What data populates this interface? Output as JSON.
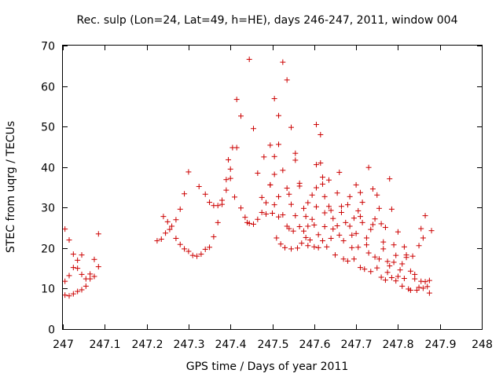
{
  "chart_data": {
    "type": "scatter",
    "title": "Rec. sulp (Lon=24, Lat=49, h=HE), days 246-247, 2011, window 004",
    "xlabel": "GPS time / Days of year 2011",
    "ylabel": "STEC from uqrg / TECUs",
    "xlim": [
      247,
      248
    ],
    "ylim": [
      0,
      70
    ],
    "xticks": [
      "247",
      "247.1",
      "247.2",
      "247.3",
      "247.4",
      "247.5",
      "247.6",
      "247.7",
      "247.8",
      "247.9",
      "248"
    ],
    "yticks": [
      "0",
      "10",
      "20",
      "30",
      "40",
      "50",
      "60",
      "70"
    ],
    "grid": false,
    "marker": "plus",
    "color": "#cc0000",
    "series": [
      {
        "points": [
          [
            247.005,
            24.7
          ],
          [
            247.005,
            11.8
          ],
          [
            247.005,
            8.4
          ],
          [
            247.015,
            22.0
          ],
          [
            247.015,
            13.2
          ],
          [
            247.015,
            8.2
          ],
          [
            247.025,
            18.5
          ],
          [
            247.025,
            15.2
          ],
          [
            247.025,
            8.7
          ],
          [
            247.035,
            17.0
          ],
          [
            247.035,
            15.0
          ],
          [
            247.035,
            9.3
          ],
          [
            247.045,
            18.3
          ],
          [
            247.045,
            13.5
          ],
          [
            247.045,
            9.7
          ],
          [
            247.055,
            12.4
          ],
          [
            247.055,
            10.6
          ],
          [
            247.065,
            13.6
          ],
          [
            247.065,
            12.4
          ],
          [
            247.075,
            17.2
          ],
          [
            247.075,
            13.0
          ],
          [
            247.085,
            23.5
          ],
          [
            247.085,
            15.4
          ],
          [
            247.225,
            21.8
          ],
          [
            247.235,
            22.2
          ],
          [
            247.24,
            27.8
          ],
          [
            247.245,
            23.7
          ],
          [
            247.25,
            26.5
          ],
          [
            247.255,
            24.6
          ],
          [
            247.26,
            25.4
          ],
          [
            247.27,
            22.4
          ],
          [
            247.27,
            27.0
          ],
          [
            247.28,
            20.9
          ],
          [
            247.28,
            29.6
          ],
          [
            247.29,
            19.8
          ],
          [
            247.29,
            33.4
          ],
          [
            247.3,
            19.2
          ],
          [
            247.3,
            38.8
          ],
          [
            247.31,
            18.2
          ],
          [
            247.32,
            18.0
          ],
          [
            247.325,
            35.2
          ],
          [
            247.33,
            18.5
          ],
          [
            247.34,
            19.7
          ],
          [
            247.34,
            33.3
          ],
          [
            247.35,
            20.2
          ],
          [
            247.35,
            31.3
          ],
          [
            247.36,
            22.8
          ],
          [
            247.36,
            30.5
          ],
          [
            247.37,
            26.3
          ],
          [
            247.37,
            30.5
          ],
          [
            247.38,
            30.8
          ],
          [
            247.38,
            31.8
          ],
          [
            247.39,
            34.3
          ],
          [
            247.39,
            36.9
          ],
          [
            247.395,
            41.8
          ],
          [
            247.4,
            37.2
          ],
          [
            247.4,
            39.5
          ],
          [
            247.405,
            44.8
          ],
          [
            247.41,
            32.6
          ],
          [
            247.415,
            44.8
          ],
          [
            247.415,
            56.7
          ],
          [
            247.425,
            52.6
          ],
          [
            247.425,
            29.9
          ],
          [
            247.435,
            27.6
          ],
          [
            247.44,
            26.3
          ],
          [
            247.445,
            66.6
          ],
          [
            247.445,
            26.1
          ],
          [
            247.455,
            49.5
          ],
          [
            247.455,
            25.9
          ],
          [
            247.465,
            38.5
          ],
          [
            247.465,
            27.1
          ],
          [
            247.475,
            32.5
          ],
          [
            247.475,
            28.8
          ],
          [
            247.48,
            42.5
          ],
          [
            247.485,
            31.2
          ],
          [
            247.485,
            28.4
          ],
          [
            247.495,
            45.4
          ],
          [
            247.495,
            35.6
          ],
          [
            247.495,
            35.6
          ],
          [
            247.5,
            28.6
          ],
          [
            247.505,
            56.9
          ],
          [
            247.505,
            42.6
          ],
          [
            247.505,
            38.2
          ],
          [
            247.505,
            30.7
          ],
          [
            247.51,
            22.5
          ],
          [
            247.515,
            45.6
          ],
          [
            247.515,
            52.7
          ],
          [
            247.515,
            32.7
          ],
          [
            247.515,
            27.7
          ],
          [
            247.52,
            21.0
          ],
          [
            247.525,
            65.9
          ],
          [
            247.525,
            39.2
          ],
          [
            247.525,
            28.2
          ],
          [
            247.53,
            20.1
          ],
          [
            247.535,
            61.5
          ],
          [
            247.535,
            34.8
          ],
          [
            247.535,
            25.4
          ],
          [
            247.54,
            33.3
          ],
          [
            247.54,
            24.8
          ],
          [
            247.545,
            49.8
          ],
          [
            247.545,
            30.8
          ],
          [
            247.545,
            19.8
          ],
          [
            247.55,
            24.2
          ],
          [
            247.555,
            43.4
          ],
          [
            247.555,
            41.7
          ],
          [
            247.555,
            28.0
          ],
          [
            247.56,
            20.0
          ],
          [
            247.565,
            36.0
          ],
          [
            247.565,
            35.3
          ],
          [
            247.565,
            25.3
          ],
          [
            247.57,
            21.2
          ],
          [
            247.575,
            29.8
          ],
          [
            247.575,
            24.2
          ],
          [
            247.58,
            27.8
          ],
          [
            247.58,
            22.6
          ],
          [
            247.585,
            31.2
          ],
          [
            247.585,
            25.4
          ],
          [
            247.585,
            20.6
          ],
          [
            247.59,
            22.0
          ],
          [
            247.595,
            33.1
          ],
          [
            247.595,
            27.1
          ],
          [
            247.6,
            20.3
          ],
          [
            247.6,
            25.7
          ],
          [
            247.605,
            50.5
          ],
          [
            247.605,
            40.6
          ],
          [
            247.605,
            34.9
          ],
          [
            247.605,
            30.2
          ],
          [
            247.61,
            23.3
          ],
          [
            247.61,
            20.1
          ],
          [
            247.615,
            48.0
          ],
          [
            247.615,
            41.0
          ],
          [
            247.62,
            37.5
          ],
          [
            247.62,
            35.8
          ],
          [
            247.62,
            21.8
          ],
          [
            247.625,
            32.7
          ],
          [
            247.625,
            28.7
          ],
          [
            247.625,
            25.3
          ],
          [
            247.63,
            20.3
          ],
          [
            247.635,
            36.8
          ],
          [
            247.635,
            30.3
          ],
          [
            247.64,
            29.3
          ],
          [
            247.64,
            22.4
          ],
          [
            247.645,
            27.3
          ],
          [
            247.645,
            24.7
          ],
          [
            247.65,
            18.3
          ],
          [
            247.655,
            33.6
          ],
          [
            247.655,
            25.5
          ],
          [
            247.66,
            38.7
          ],
          [
            247.66,
            23.2
          ],
          [
            247.665,
            30.3
          ],
          [
            247.665,
            28.8
          ],
          [
            247.67,
            21.8
          ],
          [
            247.67,
            17.3
          ],
          [
            247.675,
            26.3
          ],
          [
            247.68,
            30.7
          ],
          [
            247.68,
            16.8
          ],
          [
            247.685,
            32.7
          ],
          [
            247.685,
            25.4
          ],
          [
            247.69,
            23.2
          ],
          [
            247.69,
            20.1
          ],
          [
            247.695,
            27.4
          ],
          [
            247.695,
            17.3
          ],
          [
            247.7,
            35.6
          ],
          [
            247.7,
            23.6
          ],
          [
            247.705,
            29.2
          ],
          [
            247.705,
            20.2
          ],
          [
            247.71,
            33.7
          ],
          [
            247.71,
            27.8
          ],
          [
            247.71,
            15.2
          ],
          [
            247.715,
            31.3
          ],
          [
            247.715,
            26.3
          ],
          [
            247.72,
            14.8
          ],
          [
            247.725,
            22.5
          ],
          [
            247.725,
            20.8
          ],
          [
            247.73,
            39.9
          ],
          [
            247.73,
            18.8
          ],
          [
            247.735,
            24.6
          ],
          [
            247.735,
            14.2
          ],
          [
            247.74,
            34.6
          ],
          [
            247.74,
            25.8
          ],
          [
            247.745,
            27.2
          ],
          [
            247.745,
            17.8
          ],
          [
            247.75,
            33.1
          ],
          [
            247.75,
            15.1
          ],
          [
            247.755,
            29.8
          ],
          [
            247.755,
            17.3
          ],
          [
            247.76,
            26.0
          ],
          [
            247.76,
            12.8
          ],
          [
            247.765,
            21.5
          ],
          [
            247.765,
            19.8
          ],
          [
            247.77,
            25.1
          ],
          [
            247.77,
            12.1
          ],
          [
            247.775,
            16.7
          ],
          [
            247.775,
            14.0
          ],
          [
            247.78,
            37.1
          ],
          [
            247.78,
            15.6
          ],
          [
            247.785,
            29.6
          ],
          [
            247.785,
            12.7
          ],
          [
            247.79,
            20.8
          ],
          [
            247.79,
            16.5
          ],
          [
            247.795,
            18.2
          ],
          [
            247.795,
            11.9
          ],
          [
            247.8,
            24.0
          ],
          [
            247.8,
            13.0
          ],
          [
            247.805,
            14.6
          ],
          [
            247.81,
            16.1
          ],
          [
            247.81,
            10.6
          ],
          [
            247.815,
            20.3
          ],
          [
            247.815,
            12.5
          ],
          [
            247.82,
            18.3
          ],
          [
            247.82,
            17.7
          ],
          [
            247.825,
            9.9
          ],
          [
            247.83,
            14.3
          ],
          [
            247.83,
            9.6
          ],
          [
            247.835,
            18.0
          ],
          [
            247.84,
            13.5
          ],
          [
            247.84,
            12.4
          ],
          [
            247.845,
            9.6
          ],
          [
            247.85,
            20.6
          ],
          [
            247.85,
            10.3
          ],
          [
            247.855,
            24.8
          ],
          [
            247.855,
            11.8
          ],
          [
            247.86,
            22.5
          ],
          [
            247.86,
            10.1
          ],
          [
            247.865,
            28.0
          ],
          [
            247.865,
            11.7
          ],
          [
            247.87,
            10.5
          ],
          [
            247.875,
            12.0
          ],
          [
            247.875,
            8.9
          ],
          [
            247.88,
            24.3
          ]
        ]
      }
    ]
  }
}
